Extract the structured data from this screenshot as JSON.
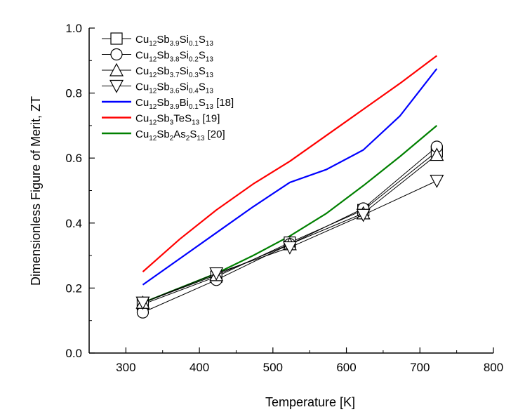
{
  "chart_data": {
    "type": "line",
    "xlabel": "Temperature [K]",
    "ylabel": "Dimensionless Figure of Merit, ZT",
    "xlim": [
      250,
      800
    ],
    "ylim": [
      0.0,
      1.0
    ],
    "xticks": [
      "300",
      "400",
      "500",
      "600",
      "700",
      "800"
    ],
    "yticks": [
      "0.0",
      "0.2",
      "0.4",
      "0.6",
      "0.8",
      "1.0"
    ],
    "legend_placement": "top-left",
    "grid": false,
    "series": [
      {
        "name": "Cu12Sb3.9Si0.1S13",
        "legend": [
          [
            "Cu",
            "n"
          ],
          [
            "12",
            "s"
          ],
          [
            "Sb",
            "n"
          ],
          [
            "3.9",
            "s"
          ],
          [
            "Si",
            "n"
          ],
          [
            "0.1",
            "s"
          ],
          [
            "S",
            "n"
          ],
          [
            "13",
            "s"
          ]
        ],
        "marker": "square",
        "color": "#000000",
        "x": [
          323,
          423,
          523,
          623,
          723
        ],
        "y": [
          0.15,
          0.235,
          0.34,
          0.44,
          0.62
        ]
      },
      {
        "name": "Cu12Sb3.8Si0.2S13",
        "legend": [
          [
            "Cu",
            "n"
          ],
          [
            "12",
            "s"
          ],
          [
            "Sb",
            "n"
          ],
          [
            "3.8",
            "s"
          ],
          [
            "Si",
            "n"
          ],
          [
            "0.2",
            "s"
          ],
          [
            "S",
            "n"
          ],
          [
            "13",
            "s"
          ]
        ],
        "marker": "circle",
        "color": "#000000",
        "x": [
          323,
          423,
          523,
          623,
          723
        ],
        "y": [
          0.125,
          0.225,
          0.335,
          0.445,
          0.635
        ]
      },
      {
        "name": "Cu12Sb3.7Si0.3S13",
        "legend": [
          [
            "Cu",
            "n"
          ],
          [
            "12",
            "s"
          ],
          [
            "Sb",
            "n"
          ],
          [
            "3.7",
            "s"
          ],
          [
            "Si",
            "n"
          ],
          [
            "0.3",
            "s"
          ],
          [
            "S",
            "n"
          ],
          [
            "13",
            "s"
          ]
        ],
        "marker": "triangle-up",
        "color": "#000000",
        "x": [
          323,
          423,
          523,
          623,
          723
        ],
        "y": [
          0.155,
          0.24,
          0.335,
          0.43,
          0.61
        ]
      },
      {
        "name": "Cu12Sb3.6Si0.4S13",
        "legend": [
          [
            "Cu",
            "n"
          ],
          [
            "12",
            "s"
          ],
          [
            "Sb",
            "n"
          ],
          [
            "3.6",
            "s"
          ],
          [
            "Si",
            "n"
          ],
          [
            "0.4",
            "s"
          ],
          [
            "S",
            "n"
          ],
          [
            "13",
            "s"
          ]
        ],
        "marker": "triangle-down",
        "color": "#000000",
        "x": [
          323,
          423,
          523,
          623,
          723
        ],
        "y": [
          0.155,
          0.245,
          0.325,
          0.425,
          0.53
        ]
      },
      {
        "name": "Cu12Sb3.9Bi0.1S13 [18]",
        "legend": [
          [
            "Cu",
            "n"
          ],
          [
            "12",
            "s"
          ],
          [
            "Sb",
            "n"
          ],
          [
            "3.9",
            "s"
          ],
          [
            "Bi",
            "n"
          ],
          [
            "0.1",
            "s"
          ],
          [
            "S",
            "n"
          ],
          [
            "13",
            "s"
          ],
          [
            " [18]",
            "n"
          ]
        ],
        "marker": "none",
        "color": "#0000ff",
        "x": [
          323,
          373,
          423,
          473,
          523,
          573,
          623,
          673,
          723
        ],
        "y": [
          0.21,
          0.29,
          0.37,
          0.45,
          0.525,
          0.565,
          0.625,
          0.73,
          0.875
        ]
      },
      {
        "name": "Cu12Sb3TeS13 [19]",
        "legend": [
          [
            "Cu",
            "n"
          ],
          [
            "12",
            "s"
          ],
          [
            "Sb",
            "n"
          ],
          [
            "3",
            "s"
          ],
          [
            "TeS",
            "n"
          ],
          [
            "13",
            "s"
          ],
          [
            " [19]",
            "n"
          ]
        ],
        "marker": "none",
        "color": "#ff0000",
        "x": [
          323,
          373,
          423,
          473,
          523,
          573,
          623,
          673,
          723
        ],
        "y": [
          0.25,
          0.35,
          0.44,
          0.52,
          0.59,
          0.67,
          0.75,
          0.83,
          0.915
        ]
      },
      {
        "name": "Cu12Sb2As2S13 [20]",
        "legend": [
          [
            "Cu",
            "n"
          ],
          [
            "12",
            "s"
          ],
          [
            "Sb",
            "n"
          ],
          [
            "2",
            "s"
          ],
          [
            "As",
            "n"
          ],
          [
            "2",
            "s"
          ],
          [
            "S",
            "n"
          ],
          [
            "13",
            "s"
          ],
          [
            " [20]",
            "n"
          ]
        ],
        "marker": "none",
        "color": "#008000",
        "x": [
          323,
          373,
          423,
          473,
          523,
          573,
          623,
          673,
          723
        ],
        "y": [
          0.155,
          0.2,
          0.245,
          0.3,
          0.36,
          0.43,
          0.515,
          0.605,
          0.7
        ]
      }
    ]
  }
}
